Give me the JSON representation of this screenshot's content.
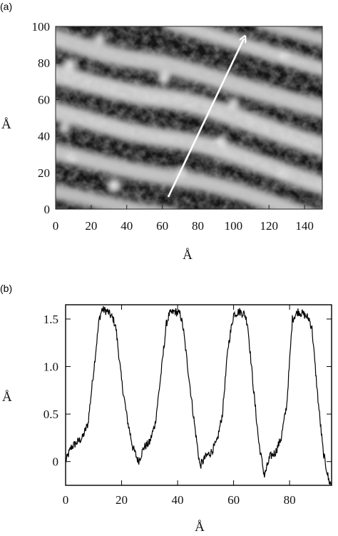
{
  "panels": [
    {
      "label": "(a)",
      "image_kind": "STM topograph (grayscale)",
      "xlabel": "Å",
      "ylabel": "Å",
      "xlim": [
        0,
        150
      ],
      "ylim": [
        0,
        100
      ],
      "xticks": [
        "0",
        "20",
        "40",
        "60",
        "80",
        "100",
        "120",
        "140"
      ],
      "yticks": [
        "0",
        "20",
        "40",
        "60",
        "80",
        "100"
      ],
      "arrow": {
        "from": [
          62,
          5
        ],
        "to": [
          107,
          98
        ],
        "color": "#ffffff"
      },
      "stripe_direction": "diagonal, descending left-to-right"
    },
    {
      "label": "(b)",
      "xlabel": "Å",
      "ylabel": "Å",
      "xticks": [
        "0",
        "20",
        "40",
        "60",
        "80"
      ],
      "yticks": [
        "0",
        "0.5",
        "1.0",
        "1.5"
      ],
      "grid": false
    }
  ],
  "chart_data": {
    "type": "line",
    "title": "",
    "xlabel": "Å",
    "ylabel": "Å",
    "xlim": [
      0,
      95
    ],
    "ylim": [
      -0.25,
      1.65
    ],
    "series": [
      {
        "values": [
          [
            0,
            0.0
          ],
          [
            2,
            0.15
          ],
          [
            4,
            0.2
          ],
          [
            6,
            0.25
          ],
          [
            8,
            0.4
          ],
          [
            10,
            0.95
          ],
          [
            12,
            1.5
          ],
          [
            13,
            1.6
          ],
          [
            15,
            1.58
          ],
          [
            17,
            1.5
          ],
          [
            18,
            1.4
          ],
          [
            20,
            0.85
          ],
          [
            22,
            0.45
          ],
          [
            24,
            0.15
          ],
          [
            26,
            0.0
          ],
          [
            28,
            0.15
          ],
          [
            30,
            0.2
          ],
          [
            32,
            0.4
          ],
          [
            34,
            0.9
          ],
          [
            36,
            1.45
          ],
          [
            37,
            1.55
          ],
          [
            39,
            1.58
          ],
          [
            41,
            1.55
          ],
          [
            42,
            1.4
          ],
          [
            44,
            0.9
          ],
          [
            46,
            0.4
          ],
          [
            48,
            -0.05
          ],
          [
            50,
            0.05
          ],
          [
            52,
            0.1
          ],
          [
            54,
            0.2
          ],
          [
            56,
            0.5
          ],
          [
            58,
            1.2
          ],
          [
            60,
            1.55
          ],
          [
            62,
            1.58
          ],
          [
            64,
            1.55
          ],
          [
            65,
            1.45
          ],
          [
            67,
            0.8
          ],
          [
            69,
            0.2
          ],
          [
            71,
            -0.15
          ],
          [
            73,
            0.05
          ],
          [
            75,
            0.1
          ],
          [
            77,
            0.25
          ],
          [
            79,
            0.6
          ],
          [
            81,
            1.5
          ],
          [
            83,
            1.58
          ],
          [
            85,
            1.55
          ],
          [
            87,
            1.5
          ],
          [
            88,
            1.4
          ],
          [
            90,
            0.7
          ],
          [
            92,
            0.1
          ],
          [
            94,
            -0.2
          ],
          [
            95,
            -0.25
          ]
        ],
        "color": "#000000"
      }
    ]
  }
}
